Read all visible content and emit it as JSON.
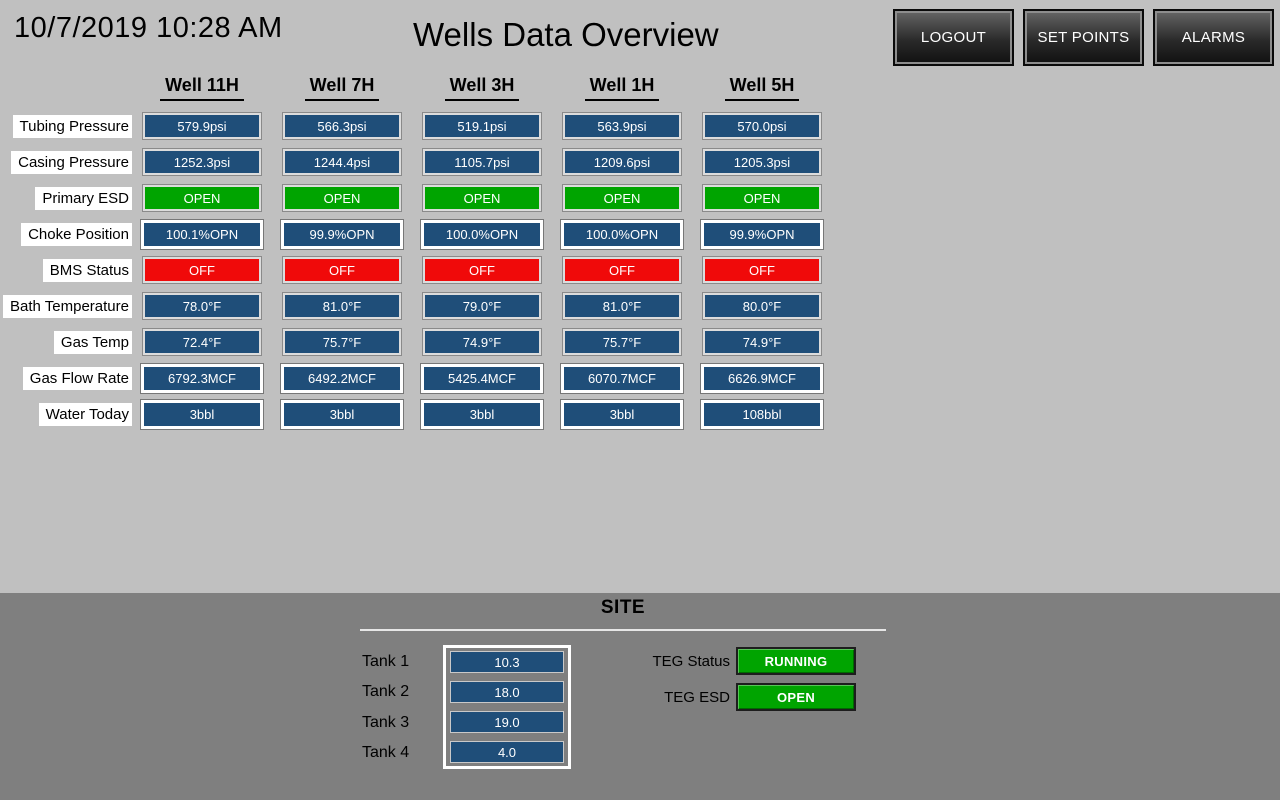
{
  "colors": {
    "bg": "#c0c0c0",
    "band": "#7f7f7f",
    "navy": "#1f4e79",
    "green": "#00a400",
    "red": "#f00a0a"
  },
  "header": {
    "datetime": "10/7/2019 10:28 AM",
    "title": "Wells Data Overview",
    "buttons": [
      {
        "label": "LOGOUT"
      },
      {
        "label": "SET POINTS"
      },
      {
        "label": "ALARMS"
      }
    ]
  },
  "wells": {
    "columns": [
      "Well 11H",
      "Well 7H",
      "Well 3H",
      "Well 1H",
      "Well 5H"
    ],
    "rows": [
      {
        "label": "Tubing Pressure",
        "state": "blue",
        "highlight": false,
        "values": [
          "579.9psi",
          "566.3psi",
          "519.1psi",
          "563.9psi",
          "570.0psi"
        ]
      },
      {
        "label": "Casing Pressure",
        "state": "blue",
        "highlight": false,
        "values": [
          "1252.3psi",
          "1244.4psi",
          "1105.7psi",
          "1209.6psi",
          "1205.3psi"
        ]
      },
      {
        "label": "Primary ESD",
        "state": "green",
        "highlight": false,
        "values": [
          "OPEN",
          "OPEN",
          "OPEN",
          "OPEN",
          "OPEN"
        ]
      },
      {
        "label": "Choke Position",
        "state": "blue",
        "highlight": true,
        "values": [
          "100.1%OPN",
          "99.9%OPN",
          "100.0%OPN",
          "100.0%OPN",
          "99.9%OPN"
        ]
      },
      {
        "label": "BMS Status",
        "state": "red",
        "highlight": false,
        "values": [
          "OFF",
          "OFF",
          "OFF",
          "OFF",
          "OFF"
        ]
      },
      {
        "label": "Bath Temperature",
        "state": "blue",
        "highlight": false,
        "values": [
          "78.0°F",
          "81.0°F",
          "79.0°F",
          "81.0°F",
          "80.0°F"
        ]
      },
      {
        "label": "Gas Temp",
        "state": "blue",
        "highlight": false,
        "values": [
          "72.4°F",
          "75.7°F",
          "74.9°F",
          "75.7°F",
          "74.9°F"
        ]
      },
      {
        "label": "Gas Flow Rate",
        "state": "blue",
        "highlight": true,
        "values": [
          "6792.3MCF",
          "6492.2MCF",
          "5425.4MCF",
          "6070.7MCF",
          "6626.9MCF"
        ]
      },
      {
        "label": "Water Today",
        "state": "blue",
        "highlight": true,
        "values": [
          "3bbl",
          "3bbl",
          "3bbl",
          "3bbl",
          "108bbl"
        ]
      }
    ]
  },
  "site": {
    "title": "SITE",
    "tanks": [
      {
        "label": "Tank 1",
        "value": "10.3"
      },
      {
        "label": "Tank 2",
        "value": "18.0"
      },
      {
        "label": "Tank 3",
        "value": "19.0"
      },
      {
        "label": "Tank 4",
        "value": "4.0"
      }
    ],
    "teg": [
      {
        "label": "TEG Status",
        "value": "RUNNING",
        "state": "green"
      },
      {
        "label": "TEG ESD",
        "value": "OPEN",
        "state": "green"
      }
    ]
  }
}
